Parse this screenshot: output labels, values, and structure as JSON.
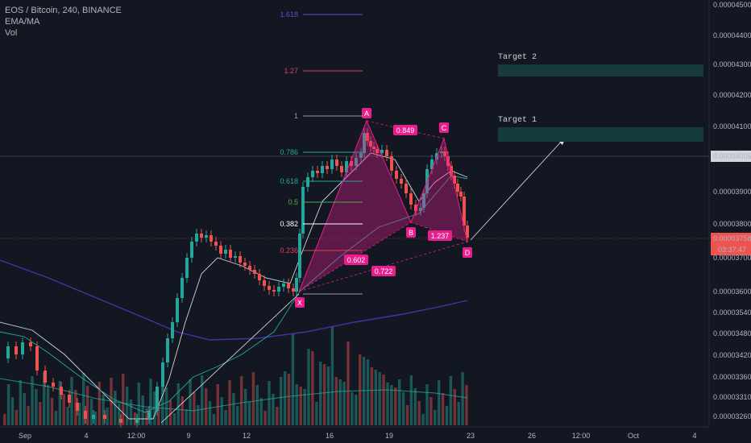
{
  "legend": {
    "symbol": "EOS / Bitcoin, 240, BINANCE",
    "indicator": "EMA/MA",
    "volume": "Vol"
  },
  "price_axis": {
    "ticks": [
      "0.00004500",
      "0.00004400",
      "0.00004300",
      "0.00004200",
      "0.00004100",
      "0.00004005",
      "0.00003900",
      "0.00003800",
      "0.00003758",
      "0.00003700",
      "0.00003600",
      "0.00003540",
      "0.00003480",
      "0.00003420",
      "0.00003360",
      "0.00003310",
      "0.00003260"
    ],
    "current_price": "0.00003758",
    "countdown": "03:37:47",
    "marked_price": "0.00004005"
  },
  "time_axis": [
    "Sep",
    "4",
    "12:00",
    "9",
    "12",
    "16",
    "19",
    "23",
    "26",
    "12:00",
    "Oct",
    "4"
  ],
  "targets": [
    {
      "label": "Target 2",
      "color": "#163a3e"
    },
    {
      "label": "Target 1",
      "color": "#163a3e"
    }
  ],
  "fib_levels": [
    {
      "label": "1.618",
      "color": "#5b4fd1"
    },
    {
      "label": "1.27",
      "color": "#e0405a"
    },
    {
      "label": "1",
      "color": "#9598a1"
    },
    {
      "label": "0.786",
      "color": "#26a69a"
    },
    {
      "label": "0.618",
      "color": "#26a69a"
    },
    {
      "label": "0.5",
      "color": "#4caf50"
    },
    {
      "label": "0.382",
      "color": "#ffffff"
    },
    {
      "label": "0.236",
      "color": "#e0405a"
    }
  ],
  "pattern": {
    "points": [
      "X",
      "A",
      "B",
      "C",
      "D"
    ],
    "ratios": [
      "0.849",
      "0.602",
      "1.237",
      "0.722"
    ],
    "color": "#e91e8c"
  },
  "colors": {
    "up": "#26a69a",
    "down": "#ef5350",
    "background": "#131722",
    "ema": "#d1d4dc",
    "ma": "#4a2fa6",
    "vol_ma": "#26a69a"
  },
  "chart_data": {
    "type": "candlestick",
    "title": "EOS / Bitcoin, 240, BINANCE",
    "x_range": [
      "Sep 1",
      "Oct 4"
    ],
    "ylim": [
      3.23e-05,
      4.55e-05
    ],
    "axis_side": "right",
    "annotations": [
      "Target 1",
      "Target 2"
    ]
  }
}
